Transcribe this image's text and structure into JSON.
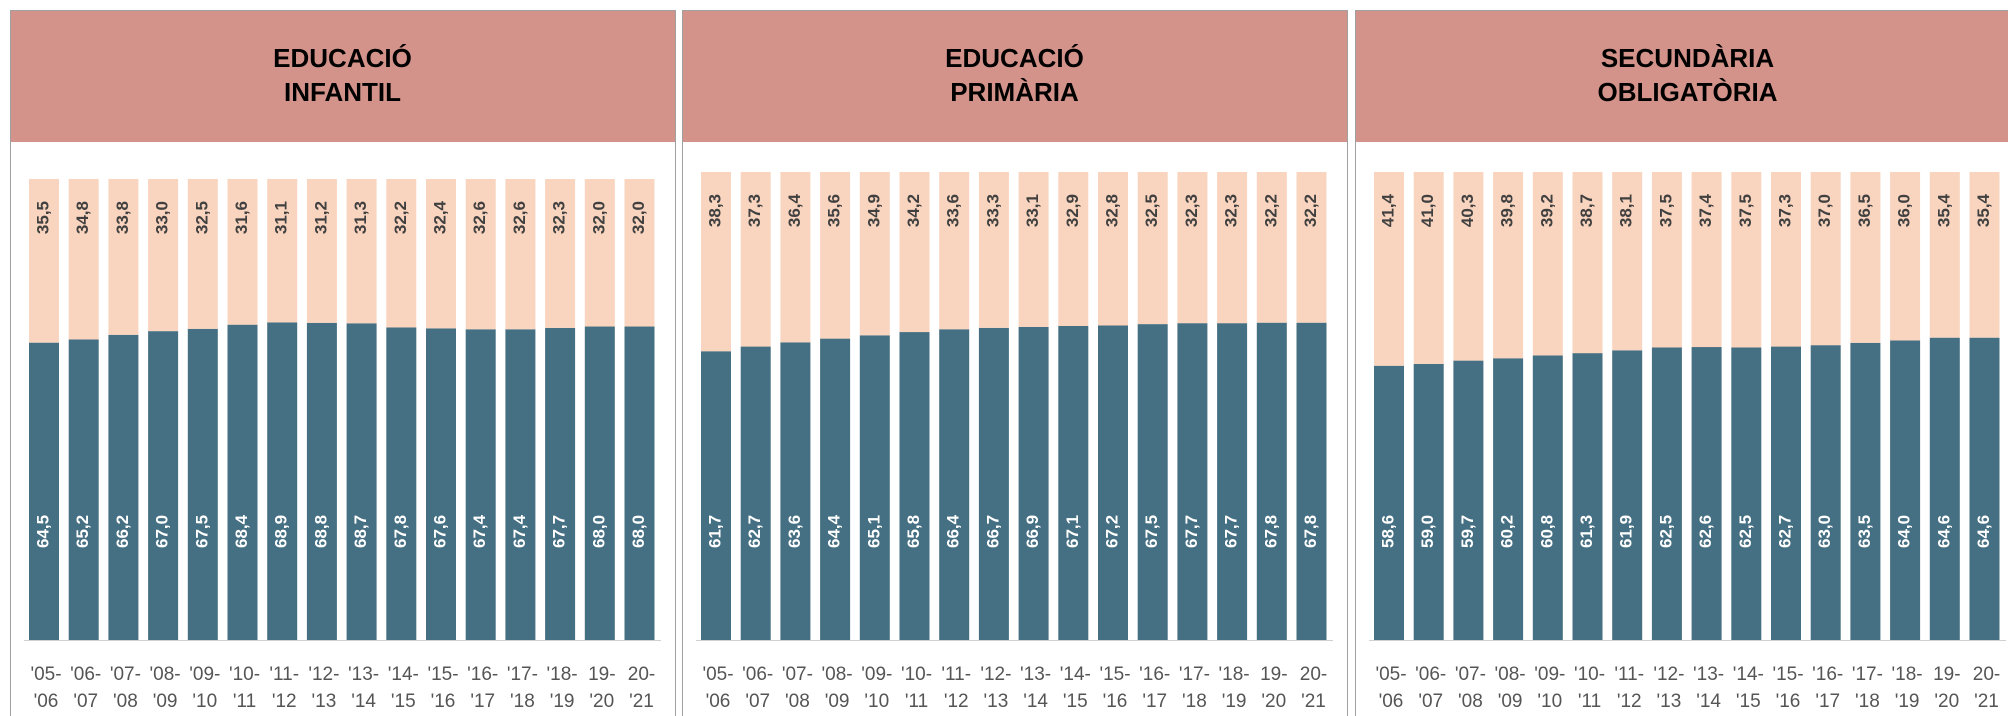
{
  "chart_data": [
    {
      "type": "bar",
      "stacked": true,
      "title": [
        "EDUCACIÓ",
        "INFANTIL"
      ],
      "categories": [
        [
          "'05-",
          "'06"
        ],
        [
          "'06-",
          "'07"
        ],
        [
          "'07-",
          "'08"
        ],
        [
          "'08-",
          "'09"
        ],
        [
          "'09-",
          "'10"
        ],
        [
          "'10-",
          "'11"
        ],
        [
          "'11-",
          "'12"
        ],
        [
          "'12-",
          "'13"
        ],
        [
          "'13-",
          "'14"
        ],
        [
          "'14-",
          "'15"
        ],
        [
          "'15-",
          "'16"
        ],
        [
          "'16-",
          "'17"
        ],
        [
          "'17-",
          "'18"
        ],
        [
          "'18-",
          "'19"
        ],
        [
          "19-",
          "'20"
        ],
        [
          "20-",
          "'21"
        ]
      ],
      "ylim": [
        0,
        100
      ],
      "series": [
        {
          "color": "#456f82",
          "values": [
            64.5,
            65.2,
            66.2,
            67.0,
            67.5,
            68.4,
            68.9,
            68.8,
            68.7,
            67.8,
            67.6,
            67.4,
            67.4,
            67.7,
            68.0,
            68.0
          ],
          "value_labels": [
            "64,5",
            "65,2",
            "66,2",
            "67,0",
            "67,5",
            "68,4",
            "68,9",
            "68,8",
            "68,7",
            "67,8",
            "67,6",
            "67,4",
            "67,4",
            "67,7",
            "68,0",
            "68,0"
          ]
        },
        {
          "color": "#f9d4be",
          "values": [
            35.5,
            34.8,
            33.8,
            33.0,
            32.5,
            31.6,
            31.1,
            31.2,
            31.3,
            32.2,
            32.4,
            32.6,
            32.6,
            32.3,
            32.0,
            32.0
          ],
          "value_labels": [
            "35,5",
            "34,8",
            "33,8",
            "33,0",
            "32,5",
            "31,6",
            "31,1",
            "31,2",
            "31,3",
            "32,2",
            "32,4",
            "32,6",
            "32,6",
            "32,3",
            "32,0",
            "32,0"
          ]
        }
      ]
    },
    {
      "type": "bar",
      "stacked": true,
      "title": [
        "EDUCACIÓ",
        "PRIMÀRIA"
      ],
      "categories": [
        [
          "'05-",
          "'06"
        ],
        [
          "'06-",
          "'07"
        ],
        [
          "'07-",
          "'08"
        ],
        [
          "'08-",
          "'09"
        ],
        [
          "'09-",
          "'10"
        ],
        [
          "'10-",
          "'11"
        ],
        [
          "'11-",
          "'12"
        ],
        [
          "'12-",
          "'13"
        ],
        [
          "'13-",
          "'14"
        ],
        [
          "'14-",
          "'15"
        ],
        [
          "'15-",
          "'16"
        ],
        [
          "'16-",
          "'17"
        ],
        [
          "'17-",
          "'18"
        ],
        [
          "'18-",
          "'19"
        ],
        [
          "19-",
          "'20"
        ],
        [
          "20-",
          "'21"
        ]
      ],
      "ylim": [
        0,
        100
      ],
      "series": [
        {
          "color": "#456f82",
          "values": [
            61.7,
            62.7,
            63.6,
            64.4,
            65.1,
            65.8,
            66.4,
            66.7,
            66.9,
            67.1,
            67.2,
            67.5,
            67.7,
            67.7,
            67.8,
            67.8
          ],
          "value_labels": [
            "61,7",
            "62,7",
            "63,6",
            "64,4",
            "65,1",
            "65,8",
            "66,4",
            "66,7",
            "66,9",
            "67,1",
            "67,2",
            "67,5",
            "67,7",
            "67,7",
            "67,8",
            "67,8"
          ]
        },
        {
          "color": "#f9d4be",
          "values": [
            38.3,
            37.3,
            36.4,
            35.6,
            34.9,
            34.2,
            33.6,
            33.3,
            33.1,
            32.9,
            32.8,
            32.5,
            32.3,
            32.3,
            32.2,
            32.2
          ],
          "value_labels": [
            "38,3",
            "37,3",
            "36,4",
            "35,6",
            "34,9",
            "34,2",
            "33,6",
            "33,3",
            "33,1",
            "32,9",
            "32,8",
            "32,5",
            "32,3",
            "32,3",
            "32,2",
            "32,2"
          ]
        }
      ]
    },
    {
      "type": "bar",
      "stacked": true,
      "title": [
        "SECUNDÀRIA",
        "OBLIGATÒRIA"
      ],
      "categories": [
        [
          "'05-",
          "'06"
        ],
        [
          "'06-",
          "'07"
        ],
        [
          "'07-",
          "'08"
        ],
        [
          "'08-",
          "'09"
        ],
        [
          "'09-",
          "'10"
        ],
        [
          "'10-",
          "'11"
        ],
        [
          "'11-",
          "'12"
        ],
        [
          "'12-",
          "'13"
        ],
        [
          "'13-",
          "'14"
        ],
        [
          "'14-",
          "'15"
        ],
        [
          "'15-",
          "'16"
        ],
        [
          "'16-",
          "'17"
        ],
        [
          "'17-",
          "'18"
        ],
        [
          "'18-",
          "'19"
        ],
        [
          "19-",
          "'20"
        ],
        [
          "20-",
          "'21"
        ]
      ],
      "ylim": [
        0,
        100
      ],
      "series": [
        {
          "color": "#456f82",
          "values": [
            58.6,
            59.0,
            59.7,
            60.2,
            60.8,
            61.3,
            61.9,
            62.5,
            62.6,
            62.5,
            62.7,
            63.0,
            63.5,
            64.0,
            64.6,
            64.6
          ],
          "value_labels": [
            "58,6",
            "59,0",
            "59,7",
            "60,2",
            "60,8",
            "61,3",
            "61,9",
            "62,5",
            "62,6",
            "62,5",
            "62,7",
            "63,0",
            "63,5",
            "64,0",
            "64,6",
            "64,6"
          ]
        },
        {
          "color": "#f9d4be",
          "values": [
            41.4,
            41.0,
            40.3,
            39.8,
            39.2,
            38.7,
            38.1,
            37.5,
            37.4,
            37.5,
            37.3,
            37.0,
            36.5,
            36.0,
            35.4,
            35.4
          ],
          "value_labels": [
            "41,4",
            "41,0",
            "40,3",
            "39,8",
            "39,2",
            "38,7",
            "38,1",
            "37,5",
            "37,4",
            "37,5",
            "37,3",
            "37,0",
            "36,5",
            "36,0",
            "35,4",
            "35,4"
          ]
        }
      ]
    }
  ]
}
